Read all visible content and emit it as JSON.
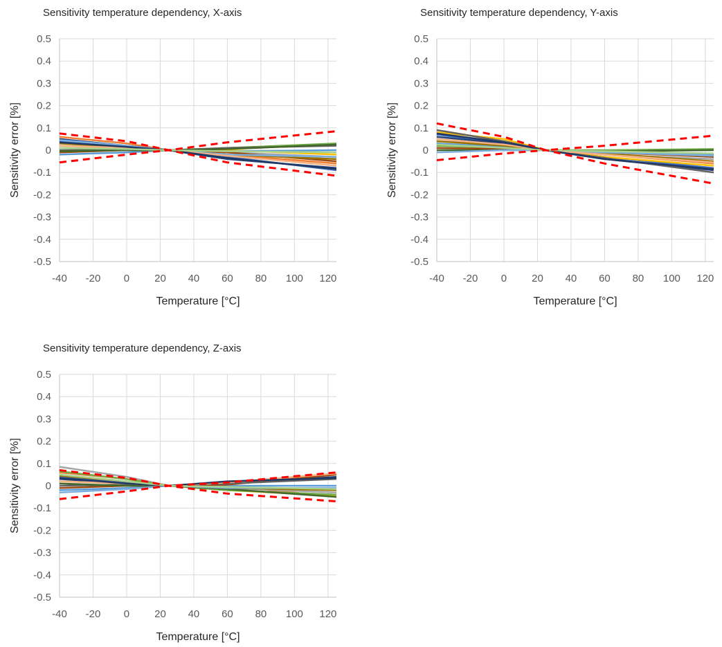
{
  "chart_data": [
    {
      "type": "line",
      "title": "Sensitivity temperature dependency, X-axis",
      "xlabel": "Temperature [°C]",
      "ylabel": "Sensitivity error [%]",
      "xlim": [
        -40,
        125
      ],
      "ylim": [
        -0.5,
        0.5
      ],
      "xticks": [
        "-40",
        "-20",
        "0",
        "20",
        "40",
        "60",
        "80",
        "100",
        "120"
      ],
      "yticks": [
        "0.5",
        "0.4",
        "0.3",
        "0.2",
        "0.1",
        "0",
        "-0.1",
        "-0.2",
        "-0.3",
        "-0.4",
        "-0.5"
      ],
      "grid": true,
      "x": [
        -40,
        0,
        25,
        60,
        125
      ],
      "limits_upper": [
        0.075,
        0.04,
        0,
        0.035,
        0.085
      ],
      "limits_lower": [
        -0.055,
        -0.02,
        0,
        -0.055,
        -0.115
      ],
      "series": [
        {
          "color": "#4472C4",
          "values": [
            0.04,
            0.02,
            0,
            -0.03,
            -0.09
          ]
        },
        {
          "color": "#ED7D31",
          "values": [
            0.06,
            0.03,
            0,
            -0.02,
            -0.06
          ]
        },
        {
          "color": "#A5A5A5",
          "values": [
            0.03,
            0.01,
            0,
            -0.01,
            -0.03
          ]
        },
        {
          "color": "#FFC000",
          "values": [
            0.02,
            0.01,
            0,
            0.0,
            -0.02
          ]
        },
        {
          "color": "#5B9BD5",
          "values": [
            -0.02,
            -0.01,
            0,
            -0.005,
            0.0
          ]
        },
        {
          "color": "#70AD47",
          "values": [
            0.01,
            0.0,
            0,
            0.01,
            0.03
          ]
        },
        {
          "color": "#264478",
          "values": [
            0.05,
            0.02,
            0,
            -0.04,
            -0.08
          ]
        },
        {
          "color": "#9E480E",
          "values": [
            -0.01,
            0.0,
            0,
            -0.01,
            -0.05
          ]
        },
        {
          "color": "#636363",
          "values": [
            0.0,
            0.0,
            0,
            0.01,
            0.02
          ]
        },
        {
          "color": "#997300",
          "values": [
            0.03,
            0.015,
            0,
            -0.02,
            -0.04
          ]
        },
        {
          "color": "#43682B",
          "values": [
            -0.005,
            0.0,
            0,
            0.005,
            0.025
          ]
        },
        {
          "color": "#7CAFDD",
          "values": [
            0.045,
            0.02,
            0,
            -0.02,
            -0.03
          ]
        },
        {
          "color": "#F4B183",
          "values": [
            0.02,
            0.01,
            0,
            -0.025,
            -0.07
          ]
        },
        {
          "color": "#1F3864",
          "values": [
            0.035,
            0.015,
            0,
            -0.035,
            -0.085
          ]
        },
        {
          "color": "#A9D18E",
          "values": [
            0.01,
            0.005,
            0,
            -0.005,
            -0.01
          ]
        }
      ]
    },
    {
      "type": "line",
      "title": "Sensitivity temperature dependency, Y-axis",
      "xlabel": "Temperature [°C]",
      "ylabel": "Sensitivity error [%]",
      "xlim": [
        -40,
        125
      ],
      "ylim": [
        -0.5,
        0.5
      ],
      "xticks": [
        "-40",
        "-20",
        "0",
        "20",
        "40",
        "60",
        "80",
        "100",
        "120"
      ],
      "yticks": [
        "0.5",
        "0.4",
        "0.3",
        "0.2",
        "0.1",
        "0",
        "-0.1",
        "-0.2",
        "-0.3",
        "-0.4",
        "-0.5"
      ],
      "grid": true,
      "x": [
        -40,
        0,
        25,
        60,
        125
      ],
      "limits_upper": [
        0.12,
        0.06,
        0,
        0.02,
        0.065
      ],
      "limits_lower": [
        -0.045,
        -0.015,
        0,
        -0.06,
        -0.15
      ],
      "series": [
        {
          "color": "#4472C4",
          "values": [
            0.07,
            0.03,
            0,
            -0.03,
            -0.08
          ]
        },
        {
          "color": "#ED7D31",
          "values": [
            0.09,
            0.04,
            0,
            -0.02,
            -0.06
          ]
        },
        {
          "color": "#A5A5A5",
          "values": [
            0.05,
            0.02,
            0,
            -0.02,
            -0.04
          ]
        },
        {
          "color": "#FFC000",
          "values": [
            0.08,
            0.05,
            0,
            -0.03,
            -0.07
          ]
        },
        {
          "color": "#5B9BD5",
          "values": [
            0.03,
            0.015,
            0,
            -0.01,
            -0.02
          ]
        },
        {
          "color": "#70AD47",
          "values": [
            0.02,
            0.01,
            0,
            0.0,
            0.005
          ]
        },
        {
          "color": "#264478",
          "values": [
            0.06,
            0.03,
            0,
            -0.04,
            -0.09
          ]
        },
        {
          "color": "#9E480E",
          "values": [
            0.01,
            0.005,
            0,
            -0.01,
            -0.03
          ]
        },
        {
          "color": "#636363",
          "values": [
            0.09,
            0.04,
            0,
            -0.035,
            -0.1
          ]
        },
        {
          "color": "#997300",
          "values": [
            0.04,
            0.02,
            0,
            -0.015,
            -0.05
          ]
        },
        {
          "color": "#43682B",
          "values": [
            0.0,
            0.0,
            0,
            -0.005,
            0.0
          ]
        },
        {
          "color": "#7CAFDD",
          "values": [
            -0.01,
            0.0,
            0,
            -0.01,
            -0.025
          ]
        },
        {
          "color": "#F4B183",
          "values": [
            0.05,
            0.025,
            0,
            -0.02,
            -0.055
          ]
        },
        {
          "color": "#1F3864",
          "values": [
            0.075,
            0.035,
            0,
            -0.04,
            -0.085
          ]
        },
        {
          "color": "#A9D18E",
          "values": [
            0.025,
            0.01,
            0,
            -0.005,
            -0.015
          ]
        }
      ]
    },
    {
      "type": "line",
      "title": "Sensitivity temperature dependency, Z-axis",
      "xlabel": "Temperature [°C]",
      "ylabel": "Sensitivity error [%]",
      "xlim": [
        -40,
        125
      ],
      "ylim": [
        -0.5,
        0.5
      ],
      "xticks": [
        "-40",
        "-20",
        "0",
        "20",
        "40",
        "60",
        "80",
        "100",
        "120"
      ],
      "yticks": [
        "0.5",
        "0.4",
        "0.3",
        "0.2",
        "0.1",
        "0",
        "-0.1",
        "-0.2",
        "-0.3",
        "-0.4",
        "-0.5"
      ],
      "grid": true,
      "x": [
        -40,
        0,
        25,
        60,
        125
      ],
      "limits_upper": [
        0.07,
        0.035,
        0,
        0.015,
        0.06
      ],
      "limits_lower": [
        -0.06,
        -0.025,
        0,
        -0.035,
        -0.07
      ],
      "series": [
        {
          "color": "#4472C4",
          "values": [
            0.04,
            0.015,
            0,
            -0.02,
            -0.04
          ]
        },
        {
          "color": "#ED7D31",
          "values": [
            0.06,
            0.03,
            0,
            0.0,
            -0.05
          ]
        },
        {
          "color": "#A5A5A5",
          "values": [
            0.085,
            0.04,
            0,
            -0.01,
            -0.03
          ]
        },
        {
          "color": "#FFC000",
          "values": [
            0.02,
            0.01,
            0,
            -0.02,
            -0.045
          ]
        },
        {
          "color": "#5B9BD5",
          "values": [
            -0.02,
            -0.01,
            0,
            0.0,
            0.0
          ]
        },
        {
          "color": "#70AD47",
          "values": [
            0.065,
            0.03,
            0,
            -0.02,
            -0.04
          ]
        },
        {
          "color": "#264478",
          "values": [
            0.03,
            0.01,
            0,
            0.01,
            0.04
          ]
        },
        {
          "color": "#9E480E",
          "values": [
            -0.01,
            0.0,
            0,
            0.005,
            0.05
          ]
        },
        {
          "color": "#636363",
          "values": [
            0.0,
            0.005,
            0,
            0.01,
            0.03
          ]
        },
        {
          "color": "#997300",
          "values": [
            0.045,
            0.02,
            0,
            -0.01,
            -0.02
          ]
        },
        {
          "color": "#43682B",
          "values": [
            0.01,
            0.0,
            0,
            -0.015,
            -0.05
          ]
        },
        {
          "color": "#7CAFDD",
          "values": [
            -0.03,
            -0.015,
            0,
            -0.01,
            -0.01
          ]
        },
        {
          "color": "#F4B183",
          "values": [
            0.02,
            0.01,
            0,
            0.015,
            0.055
          ]
        },
        {
          "color": "#1F3864",
          "values": [
            0.035,
            0.01,
            0,
            0.02,
            0.035
          ]
        },
        {
          "color": "#A9D18E",
          "values": [
            0.05,
            0.02,
            0,
            -0.005,
            -0.015
          ]
        }
      ]
    }
  ]
}
